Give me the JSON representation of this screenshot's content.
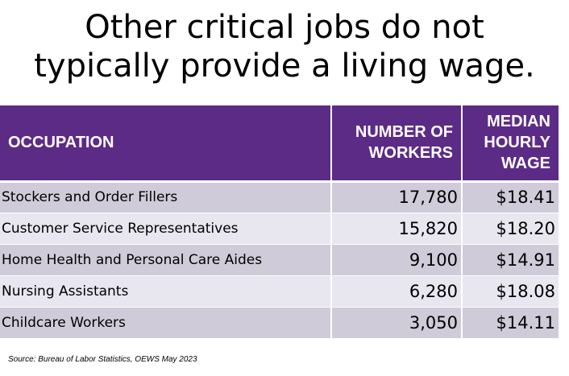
{
  "title": {
    "line1": "Other critical jobs do not",
    "line2": "typically provide a living wage."
  },
  "table": {
    "headers": {
      "occupation": "OCCUPATION",
      "workers_line1": "NUMBER OF",
      "workers_line2": "WORKERS",
      "wage_line1": "MEDIAN",
      "wage_line2": "HOURLY",
      "wage_line3": "WAGE"
    },
    "rows": [
      {
        "occupation": "Stockers and Order Fillers",
        "workers": "17,780",
        "wage": "$18.41"
      },
      {
        "occupation": "Customer Service Representatives",
        "workers": "15,820",
        "wage": "$18.20"
      },
      {
        "occupation": "Home Health and Personal Care Aides",
        "workers": "9,100",
        "wage": "$14.91"
      },
      {
        "occupation": "Nursing Assistants",
        "workers": "6,280",
        "wage": "$18.08"
      },
      {
        "occupation": "Childcare Workers",
        "workers": "3,050",
        "wage": "$14.11"
      }
    ],
    "colors": {
      "header_bg": "#5c2b86",
      "row_odd_bg": "#cfcbd8",
      "row_even_bg": "#e8e6ee"
    }
  },
  "source": "Source: Bureau of Labor Statistics, OEWS May 2023"
}
